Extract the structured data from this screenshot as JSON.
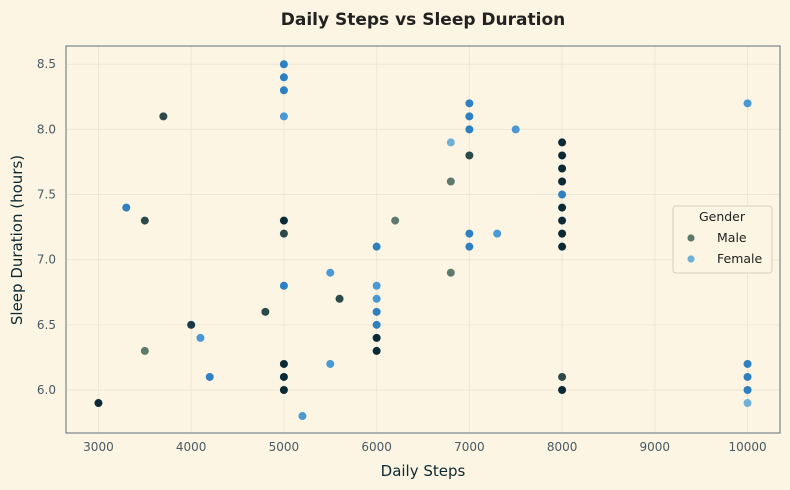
{
  "chart_data": {
    "type": "scatter",
    "title": "Daily Steps vs Sleep Duration",
    "xlabel": "Daily Steps",
    "ylabel": "Sleep Duration (hours)",
    "xlim": [
      2650,
      10350
    ],
    "ylim": [
      5.67,
      8.64
    ],
    "xticks": [
      3000,
      4000,
      5000,
      6000,
      7000,
      8000,
      9000,
      10000
    ],
    "yticks": [
      6.0,
      6.5,
      7.0,
      7.5,
      8.0,
      8.5
    ],
    "grid": true,
    "legend": {
      "title": "Gender",
      "placement": "center-right"
    },
    "colors": {
      "background": "#fdf5e3",
      "male": "#5e7a6e",
      "female": "#6eb0d8",
      "spine": "#5a6e78",
      "grid": "#efe6d3"
    },
    "series": [
      {
        "name": "Male",
        "points": [
          {
            "x": 3000,
            "y": 5.9,
            "c": "#0a2a38"
          },
          {
            "x": 3500,
            "y": 6.3,
            "c": "#5e7a6e"
          },
          {
            "x": 3500,
            "y": 7.3,
            "c": "#2c4a4a"
          },
          {
            "x": 3700,
            "y": 8.1,
            "c": "#2c4a4a"
          },
          {
            "x": 4000,
            "y": 6.5,
            "c": "#163a4c"
          },
          {
            "x": 4800,
            "y": 6.6,
            "c": "#2c4a4a"
          },
          {
            "x": 5000,
            "y": 7.2,
            "c": "#2c4a4a"
          },
          {
            "x": 5000,
            "y": 7.3,
            "c": "#0a2a38"
          },
          {
            "x": 5000,
            "y": 6.2,
            "c": "#0a2a38"
          },
          {
            "x": 5000,
            "y": 6.1,
            "c": "#0a2a38"
          },
          {
            "x": 5000,
            "y": 6.0,
            "c": "#0a2a38"
          },
          {
            "x": 5600,
            "y": 6.7,
            "c": "#2c4a4a"
          },
          {
            "x": 6000,
            "y": 6.4,
            "c": "#0a2a38"
          },
          {
            "x": 6000,
            "y": 6.3,
            "c": "#0a2a38"
          },
          {
            "x": 6200,
            "y": 7.3,
            "c": "#5e7a6e"
          },
          {
            "x": 6800,
            "y": 7.6,
            "c": "#5e7a6e"
          },
          {
            "x": 6800,
            "y": 6.9,
            "c": "#5e7a6e"
          },
          {
            "x": 7000,
            "y": 7.8,
            "c": "#2c4a4a"
          },
          {
            "x": 8000,
            "y": 7.9,
            "c": "#0a2a38"
          },
          {
            "x": 8000,
            "y": 7.8,
            "c": "#0a2a38"
          },
          {
            "x": 8000,
            "y": 7.7,
            "c": "#0a2a38"
          },
          {
            "x": 8000,
            "y": 7.6,
            "c": "#0a2a38"
          },
          {
            "x": 8000,
            "y": 7.4,
            "c": "#0a2a38"
          },
          {
            "x": 8000,
            "y": 7.3,
            "c": "#0a2a38"
          },
          {
            "x": 8000,
            "y": 7.2,
            "c": "#0a2a38"
          },
          {
            "x": 8000,
            "y": 7.1,
            "c": "#0a2a38"
          },
          {
            "x": 8000,
            "y": 6.1,
            "c": "#2c4a4a"
          },
          {
            "x": 8000,
            "y": 6.0,
            "c": "#0a2a38"
          }
        ]
      },
      {
        "name": "Female",
        "points": [
          {
            "x": 3300,
            "y": 7.4,
            "c": "#2e80c0"
          },
          {
            "x": 4100,
            "y": 6.4,
            "c": "#4a98d4"
          },
          {
            "x": 4200,
            "y": 6.1,
            "c": "#2e80c0"
          },
          {
            "x": 5000,
            "y": 8.5,
            "c": "#2e80c0"
          },
          {
            "x": 5000,
            "y": 8.4,
            "c": "#2e80c0"
          },
          {
            "x": 5000,
            "y": 8.3,
            "c": "#2e80c0"
          },
          {
            "x": 5000,
            "y": 8.1,
            "c": "#4a98d4"
          },
          {
            "x": 5000,
            "y": 6.8,
            "c": "#2e80c0"
          },
          {
            "x": 5200,
            "y": 5.8,
            "c": "#4a98d4"
          },
          {
            "x": 5500,
            "y": 6.9,
            "c": "#4a98d4"
          },
          {
            "x": 5500,
            "y": 6.2,
            "c": "#4a98d4"
          },
          {
            "x": 6000,
            "y": 7.1,
            "c": "#2e80c0"
          },
          {
            "x": 6000,
            "y": 6.8,
            "c": "#4a98d4"
          },
          {
            "x": 6000,
            "y": 6.7,
            "c": "#4a98d4"
          },
          {
            "x": 6000,
            "y": 6.6,
            "c": "#2e80c0"
          },
          {
            "x": 6000,
            "y": 6.5,
            "c": "#2e80c0"
          },
          {
            "x": 6800,
            "y": 7.9,
            "c": "#6eb0d8"
          },
          {
            "x": 7000,
            "y": 8.2,
            "c": "#2e80c0"
          },
          {
            "x": 7000,
            "y": 8.1,
            "c": "#2e80c0"
          },
          {
            "x": 7000,
            "y": 8.0,
            "c": "#2e80c0"
          },
          {
            "x": 7000,
            "y": 7.2,
            "c": "#2e80c0"
          },
          {
            "x": 7000,
            "y": 7.1,
            "c": "#2e80c0"
          },
          {
            "x": 7300,
            "y": 7.2,
            "c": "#4a98d4"
          },
          {
            "x": 7500,
            "y": 8.0,
            "c": "#4a98d4"
          },
          {
            "x": 8000,
            "y": 7.5,
            "c": "#2e80c0"
          },
          {
            "x": 10000,
            "y": 8.2,
            "c": "#4a98d4"
          },
          {
            "x": 10000,
            "y": 6.2,
            "c": "#2e80c0"
          },
          {
            "x": 10000,
            "y": 6.1,
            "c": "#2e80c0"
          },
          {
            "x": 10000,
            "y": 6.0,
            "c": "#2e80c0"
          },
          {
            "x": 10000,
            "y": 5.9,
            "c": "#6eb0d8"
          }
        ]
      }
    ]
  }
}
